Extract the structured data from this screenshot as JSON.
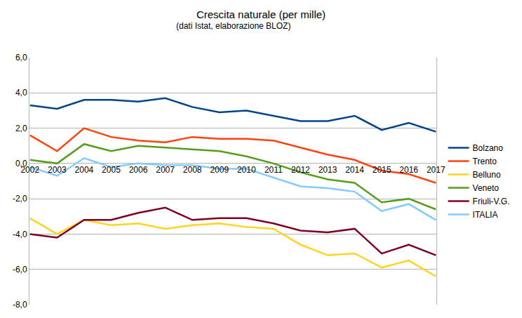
{
  "chart_data": {
    "type": "line",
    "title": "Crescita naturale (per mille)",
    "subtitle": "(dati Istat, elaborazione BLOZ)",
    "categories": [
      "2002",
      "2003",
      "2004",
      "2005",
      "2006",
      "2007",
      "2008",
      "2009",
      "2010",
      "2011",
      "2012",
      "2013",
      "2014",
      "2015",
      "2016",
      "2017"
    ],
    "series": [
      {
        "name": "Bolzano",
        "color": "#004586",
        "values": [
          3.3,
          3.1,
          3.6,
          3.6,
          3.5,
          3.7,
          3.2,
          2.9,
          3.0,
          2.7,
          2.4,
          2.4,
          2.7,
          1.9,
          2.3,
          1.8
        ]
      },
      {
        "name": "Trento",
        "color": "#ff420e",
        "values": [
          1.6,
          0.7,
          2.0,
          1.5,
          1.3,
          1.2,
          1.5,
          1.4,
          1.4,
          1.3,
          0.9,
          0.5,
          0.2,
          -0.4,
          -0.6,
          -1.1
        ]
      },
      {
        "name": "Belluno",
        "color": "#ffd320",
        "values": [
          -3.1,
          -4.0,
          -3.2,
          -3.5,
          -3.4,
          -3.7,
          -3.5,
          -3.4,
          -3.6,
          -3.7,
          -4.6,
          -5.2,
          -5.1,
          -5.9,
          -5.5,
          -6.4
        ]
      },
      {
        "name": "Veneto",
        "color": "#579d1c",
        "values": [
          0.2,
          0.0,
          1.1,
          0.7,
          1.0,
          0.9,
          0.8,
          0.7,
          0.4,
          0.0,
          -0.5,
          -0.9,
          -1.1,
          -2.2,
          -2.0,
          -2.6
        ]
      },
      {
        "name": "Friuli-V.G.",
        "color": "#7e0021",
        "values": [
          -4.0,
          -4.2,
          -3.2,
          -3.2,
          -2.8,
          -2.5,
          -3.2,
          -3.1,
          -3.1,
          -3.4,
          -3.8,
          -3.9,
          -3.7,
          -5.1,
          -4.6,
          -5.2
        ]
      },
      {
        "name": "ITALIA",
        "color": "#83caff",
        "values": [
          -0.2,
          -0.7,
          0.3,
          -0.2,
          0.0,
          -0.1,
          -0.1,
          -0.3,
          -0.3,
          -0.8,
          -1.3,
          -1.4,
          -1.6,
          -2.7,
          -2.3,
          -3.2
        ]
      }
    ],
    "ylim": [
      -8,
      6
    ],
    "yticks": [
      {
        "value": -8,
        "label": "-8,0"
      },
      {
        "value": -6,
        "label": "-6,0"
      },
      {
        "value": -4,
        "label": "-4,0"
      },
      {
        "value": -2,
        "label": "-2,0"
      },
      {
        "value": 0,
        "label": "0,0"
      },
      {
        "value": 2,
        "label": "2,0"
      },
      {
        "value": 4,
        "label": "4,0"
      },
      {
        "value": 6,
        "label": "6,0"
      }
    ],
    "grid": true,
    "legend": "right"
  }
}
